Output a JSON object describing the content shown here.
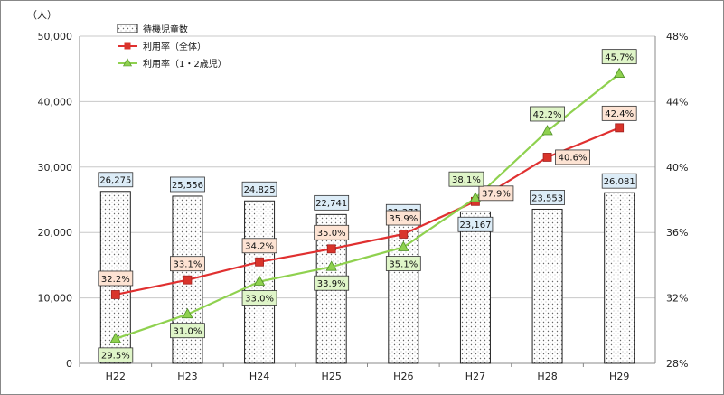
{
  "chart_data": {
    "type": "bar",
    "categories": [
      "H22",
      "H23",
      "H24",
      "H25",
      "H26",
      "H27",
      "H28",
      "H29"
    ],
    "left_axis": {
      "unit": "（人）",
      "ylim": [
        0,
        50000
      ],
      "ticks": [
        "0",
        "10,000",
        "20,000",
        "30,000",
        "40,000",
        "50,000"
      ]
    },
    "right_axis": {
      "ylim": [
        28,
        48
      ],
      "ticks": [
        "28%",
        "32%",
        "36%",
        "40%",
        "44%",
        "48%"
      ]
    },
    "bars": {
      "name": "待機児童数",
      "values": [
        26275,
        25556,
        24825,
        22741,
        21371,
        23167,
        23553,
        26081
      ],
      "labels": [
        "26,275",
        "25,556",
        "24,825",
        "22,741",
        "21,371",
        "23,167",
        "23,553",
        "26,081"
      ]
    },
    "series": [
      {
        "name": "利用率（全体）",
        "axis": "right",
        "color": "#e03030",
        "values": [
          32.2,
          33.1,
          34.2,
          35.0,
          35.9,
          37.9,
          40.6,
          42.4
        ],
        "labels": [
          "32.2%",
          "33.1%",
          "34.2%",
          "35.0%",
          "35.9%",
          "37.9%",
          "40.6%",
          "42.4%"
        ]
      },
      {
        "name": "利用率（1・2歳児）",
        "axis": "right",
        "color": "#8fd14f",
        "values": [
          29.5,
          31.0,
          33.0,
          33.9,
          35.1,
          38.1,
          42.2,
          45.7
        ],
        "labels": [
          "29.5%",
          "31.0%",
          "33.0%",
          "33.9%",
          "35.1%",
          "38.1%",
          "42.2%",
          "45.7%"
        ]
      }
    ],
    "grid": true,
    "legend": "top-left"
  },
  "colors": {
    "bar_label_fill": "#dcecf7",
    "total_label_fill": "#fde3d3",
    "child_label_fill": "#dff5c8"
  }
}
